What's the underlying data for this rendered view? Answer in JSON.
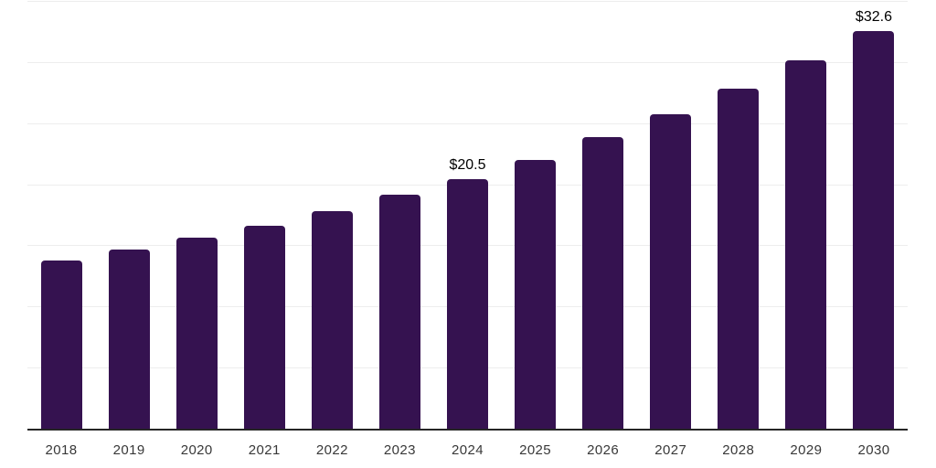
{
  "chart_data": {
    "type": "bar",
    "categories": [
      "2018",
      "2019",
      "2020",
      "2021",
      "2022",
      "2023",
      "2024",
      "2025",
      "2026",
      "2027",
      "2028",
      "2029",
      "2030"
    ],
    "values": [
      13.8,
      14.7,
      15.7,
      16.7,
      17.9,
      19.2,
      20.5,
      22.1,
      23.9,
      25.8,
      27.9,
      30.2,
      32.6
    ],
    "data_labels": [
      {
        "index": 6,
        "text": "$20.5"
      },
      {
        "index": 12,
        "text": "$32.6"
      }
    ],
    "title": "",
    "xlabel": "",
    "ylabel": "",
    "ylim": [
      0,
      35
    ],
    "gridline_step": 5,
    "grid": "on",
    "legend": "none",
    "y_tick_labels_visible": false,
    "colors": {
      "bar": "#351250",
      "gridline": "#ededed",
      "axis_line": "#262626",
      "tick_label": "#383838",
      "data_label": "#000000",
      "background": "#ffffff"
    }
  }
}
